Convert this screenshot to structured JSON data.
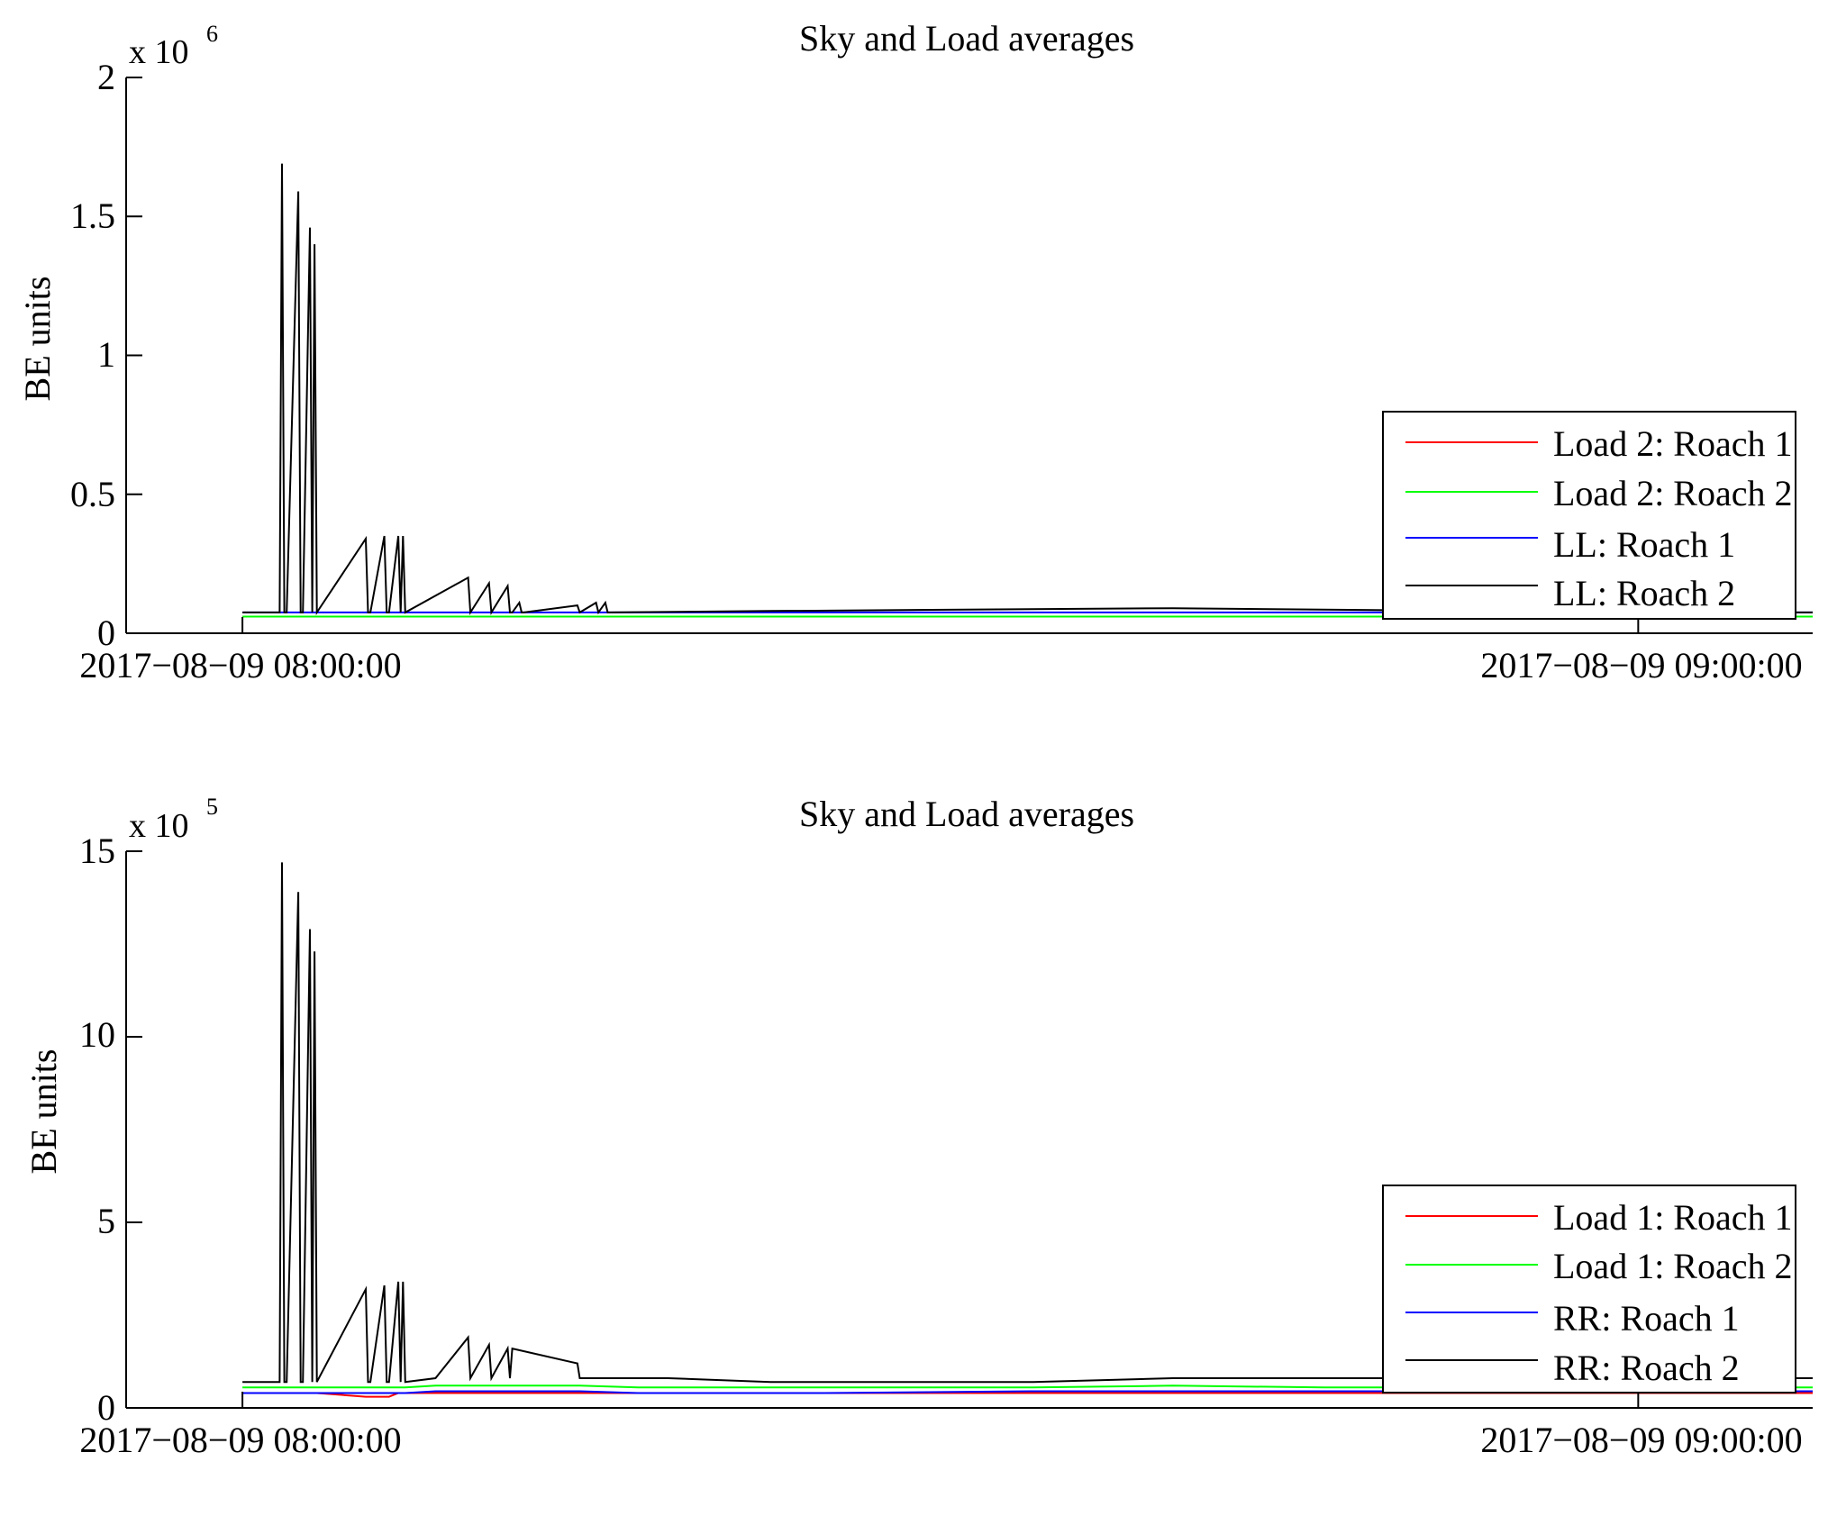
{
  "chart_data": [
    {
      "type": "line",
      "title": "Sky and Load averages",
      "ylabel": "BE units",
      "xlabel": "",
      "x_ticks": [
        "2017−08−09 08:00:00",
        "2017−08−09 09:00:00"
      ],
      "x_tick_minutes": [
        0,
        60
      ],
      "xlim_minutes": [
        -5,
        67.5
      ],
      "y_scale_multiplier": {
        "base": "x 10",
        "exponent": "6"
      },
      "y_ticks": [
        "0",
        "0.5",
        "1",
        "1.5",
        "2"
      ],
      "y_tick_values": [
        0,
        0.5,
        1,
        1.5,
        2
      ],
      "ylim": [
        0,
        2
      ],
      "grid": false,
      "legend_position": "bottom-right",
      "x_minutes": [
        0,
        1.6,
        1.7,
        1.8,
        1.9,
        2.4,
        2.5,
        2.6,
        2.9,
        3.0,
        3.1,
        3.2,
        5.3,
        5.4,
        5.5,
        6.1,
        6.2,
        6.3,
        6.7,
        6.8,
        6.9,
        7.0,
        9.7,
        9.8,
        10.6,
        10.7,
        11.4,
        11.5,
        11.6,
        11.9,
        12.0,
        12.1,
        14.4,
        14.5,
        15.2,
        15.3,
        15.6,
        15.7,
        22.7,
        40.0,
        60.0,
        67.5
      ],
      "series": [
        {
          "name": "Load 2: Roach 1",
          "color": "#ff0000",
          "values": [
            0.06,
            0.06,
            0.06,
            0.06,
            0.06,
            0.06,
            0.06,
            0.06,
            0.06,
            0.06,
            0.06,
            0.06,
            0.06,
            0.06,
            0.06,
            0.06,
            0.06,
            0.06,
            0.06,
            0.06,
            0.06,
            0.06,
            0.06,
            0.06,
            0.06,
            0.06,
            0.06,
            0.06,
            0.06,
            0.06,
            0.06,
            0.06,
            0.06,
            0.06,
            0.06,
            0.06,
            0.06,
            0.06,
            0.06,
            0.06,
            0.06,
            0.06
          ]
        },
        {
          "name": "Load 2: Roach 2",
          "color": "#00ff00",
          "values": [
            0.06,
            0.06,
            0.06,
            0.06,
            0.06,
            0.06,
            0.06,
            0.06,
            0.06,
            0.06,
            0.06,
            0.06,
            0.06,
            0.06,
            0.06,
            0.06,
            0.06,
            0.06,
            0.06,
            0.06,
            0.06,
            0.06,
            0.06,
            0.06,
            0.06,
            0.06,
            0.06,
            0.06,
            0.06,
            0.06,
            0.06,
            0.06,
            0.06,
            0.06,
            0.06,
            0.06,
            0.06,
            0.06,
            0.06,
            0.06,
            0.06,
            0.06
          ]
        },
        {
          "name": "LL: Roach 1",
          "color": "#0000ff",
          "values": [
            0.075,
            0.075,
            0.075,
            0.075,
            0.075,
            0.075,
            0.075,
            0.075,
            0.075,
            0.075,
            0.075,
            0.075,
            0.075,
            0.075,
            0.075,
            0.075,
            0.075,
            0.075,
            0.075,
            0.075,
            0.075,
            0.075,
            0.075,
            0.075,
            0.075,
            0.075,
            0.075,
            0.075,
            0.075,
            0.075,
            0.075,
            0.075,
            0.075,
            0.075,
            0.075,
            0.075,
            0.075,
            0.075,
            0.075,
            0.075,
            0.075,
            0.075
          ]
        },
        {
          "name": "LL: Roach 2",
          "color": "#000000",
          "values": [
            0.075,
            0.075,
            1.69,
            0.075,
            0.075,
            1.59,
            0.075,
            0.075,
            1.46,
            0.075,
            1.4,
            0.075,
            0.34,
            0.075,
            0.075,
            0.35,
            0.075,
            0.075,
            0.35,
            0.075,
            0.35,
            0.075,
            0.2,
            0.075,
            0.18,
            0.075,
            0.17,
            0.075,
            0.075,
            0.11,
            0.075,
            0.075,
            0.1,
            0.075,
            0.11,
            0.075,
            0.11,
            0.075,
            0.08,
            0.09,
            0.075,
            0.075
          ]
        }
      ]
    },
    {
      "type": "line",
      "title": "Sky and Load averages",
      "ylabel": "BE units",
      "xlabel": "",
      "x_ticks": [
        "2017−08−09 08:00:00",
        "2017−08−09 09:00:00"
      ],
      "x_tick_minutes": [
        0,
        60
      ],
      "xlim_minutes": [
        -5,
        67.5
      ],
      "y_scale_multiplier": {
        "base": "x 10",
        "exponent": "5"
      },
      "y_ticks": [
        "0",
        "5",
        "10",
        "15"
      ],
      "y_tick_values": [
        0,
        5,
        10,
        15
      ],
      "ylim": [
        0,
        15
      ],
      "grid": false,
      "legend_position": "bottom-right",
      "x_minutes": [
        0,
        1.6,
        1.7,
        1.8,
        1.9,
        2.4,
        2.5,
        2.6,
        2.9,
        3.0,
        3.1,
        3.2,
        5.3,
        5.4,
        5.5,
        6.1,
        6.2,
        6.3,
        6.7,
        6.8,
        6.9,
        7.0,
        8.3,
        9.7,
        9.8,
        10.6,
        10.7,
        11.4,
        11.5,
        11.6,
        14.4,
        14.5,
        17.0,
        18.3,
        22.7,
        25.0,
        34.0,
        40.0,
        46.5,
        60.0,
        67.5
      ],
      "series": [
        {
          "name": "Load 1: Roach 1",
          "color": "#ff0000",
          "values": [
            0.4,
            0.4,
            0.4,
            0.4,
            0.4,
            0.4,
            0.4,
            0.4,
            0.4,
            0.4,
            0.4,
            0.4,
            0.3,
            0.3,
            0.3,
            0.3,
            0.3,
            0.3,
            0.4,
            0.4,
            0.4,
            0.4,
            0.4,
            0.4,
            0.4,
            0.4,
            0.4,
            0.4,
            0.4,
            0.4,
            0.4,
            0.4,
            0.4,
            0.4,
            0.4,
            0.4,
            0.4,
            0.4,
            0.4,
            0.4,
            0.4
          ]
        },
        {
          "name": "Load 1: Roach 2",
          "color": "#00ff00",
          "values": [
            0.55,
            0.55,
            0.55,
            0.55,
            0.55,
            0.55,
            0.55,
            0.55,
            0.55,
            0.55,
            0.55,
            0.55,
            0.55,
            0.55,
            0.55,
            0.55,
            0.55,
            0.55,
            0.55,
            0.55,
            0.55,
            0.55,
            0.6,
            0.6,
            0.6,
            0.6,
            0.6,
            0.6,
            0.6,
            0.6,
            0.6,
            0.6,
            0.55,
            0.55,
            0.55,
            0.55,
            0.55,
            0.6,
            0.55,
            0.55,
            0.55
          ]
        },
        {
          "name": "RR: Roach 1",
          "color": "#0000ff",
          "values": [
            0.4,
            0.4,
            0.4,
            0.4,
            0.4,
            0.4,
            0.4,
            0.4,
            0.4,
            0.4,
            0.4,
            0.4,
            0.4,
            0.4,
            0.4,
            0.4,
            0.4,
            0.4,
            0.4,
            0.4,
            0.4,
            0.4,
            0.45,
            0.45,
            0.45,
            0.45,
            0.45,
            0.45,
            0.45,
            0.45,
            0.45,
            0.45,
            0.4,
            0.4,
            0.4,
            0.4,
            0.45,
            0.45,
            0.45,
            0.45,
            0.45
          ]
        },
        {
          "name": "RR: Roach 2",
          "color": "#000000",
          "values": [
            0.7,
            0.7,
            14.7,
            0.7,
            0.7,
            13.9,
            0.7,
            0.7,
            12.9,
            0.7,
            12.3,
            0.7,
            3.2,
            0.7,
            0.7,
            3.3,
            0.7,
            0.7,
            3.4,
            0.7,
            3.4,
            0.7,
            0.8,
            1.9,
            0.8,
            1.7,
            0.8,
            1.6,
            0.8,
            1.6,
            1.2,
            0.8,
            0.8,
            0.8,
            0.7,
            0.7,
            0.7,
            0.8,
            0.8,
            0.8,
            0.8
          ]
        }
      ]
    }
  ]
}
